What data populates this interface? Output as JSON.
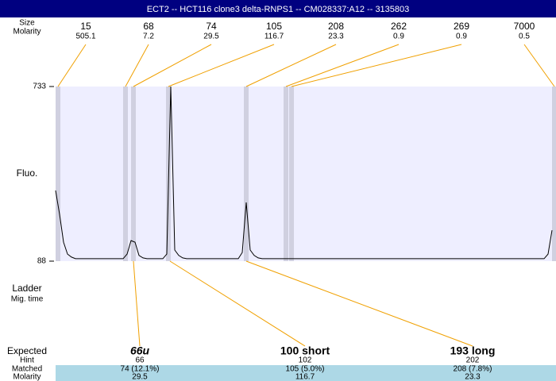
{
  "header": {
    "title": "ECT2 -- HCT116 clone3 delta-RNPS1 -- CM028337:A12 -- 3135803"
  },
  "peaks": {
    "size_label": "Size",
    "molarity_label": "Molarity",
    "sizes": [
      15,
      68,
      74,
      105,
      208,
      262,
      269,
      7000
    ],
    "molarities": [
      505.1,
      7.2,
      29.5,
      116.7,
      23.3,
      0.9,
      0.9,
      0.5
    ]
  },
  "chart_data": {
    "type": "line",
    "y_label": "Fluo.",
    "ylim": [
      88,
      733
    ],
    "yticks": [
      88,
      733
    ],
    "categories": [
      null,
      null,
      null,
      null,
      null,
      null,
      null,
      null,
      null,
      null,
      null,
      null,
      null,
      null,
      null,
      null,
      null,
      null,
      null,
      null,
      null,
      null,
      null,
      null,
      null,
      null,
      null,
      null,
      null,
      null,
      null,
      null,
      null,
      null,
      null,
      null,
      null,
      null,
      null,
      null,
      null,
      null,
      null,
      null,
      null,
      null,
      null,
      null,
      null,
      null,
      null,
      null,
      null,
      null,
      null,
      null,
      null,
      null,
      null,
      null,
      null,
      null,
      null,
      null,
      null,
      null,
      null,
      null,
      null,
      null,
      null,
      null,
      null,
      null,
      null,
      null,
      null,
      null,
      null,
      null,
      null,
      null,
      null,
      null,
      null,
      null,
      null,
      null,
      null,
      null,
      null,
      null,
      null,
      null,
      null,
      null,
      null,
      null,
      null,
      null,
      null,
      null,
      null,
      null,
      null,
      null,
      null,
      null,
      null,
      null,
      null,
      null,
      null,
      null,
      null,
      null,
      null,
      null,
      null,
      null,
      null,
      null,
      null,
      null,
      null,
      null
    ],
    "series": [
      {
        "color": "#000000",
        "values": [
          349,
          261,
          158,
          114,
          103,
          97,
          97,
          97,
          97,
          97,
          97,
          97,
          97,
          97,
          97,
          97,
          97,
          97,
          114,
          164,
          158,
          109,
          100,
          97,
          97,
          97,
          97,
          97,
          114,
          733,
          129,
          109,
          100,
          97,
          97,
          97,
          97,
          97,
          97,
          97,
          97,
          97,
          97,
          97,
          97,
          97,
          97,
          120,
          305,
          129,
          109,
          100,
          97,
          97,
          97,
          97,
          97,
          97,
          97,
          97,
          97,
          97,
          97,
          97,
          97,
          97,
          97,
          97,
          97,
          97,
          97,
          97,
          97,
          97,
          97,
          97,
          97,
          97,
          97,
          97,
          97,
          97,
          97,
          97,
          97,
          97,
          97,
          97,
          97,
          97,
          97,
          97,
          97,
          97,
          97,
          97,
          97,
          97,
          97,
          97,
          97,
          97,
          97,
          97,
          97,
          97,
          97,
          97,
          97,
          97,
          97,
          97,
          97,
          97,
          97,
          97,
          97,
          97,
          97,
          97,
          97,
          97,
          97,
          97,
          114,
          202
        ]
      }
    ]
  },
  "ladder": {
    "label": "Ladder",
    "sublabel": "Mig. time"
  },
  "expected": {
    "row_labels": [
      "Expected",
      "Hint",
      "Matched",
      "Molarity"
    ],
    "columns": [
      {
        "name": "66u",
        "hint": 66,
        "matched": "74 (12.1%)",
        "molarity": 29.5
      },
      {
        "name": "100 short",
        "hint": 102,
        "matched": "105 (5.0%)",
        "molarity": 116.7
      },
      {
        "name": "193 long",
        "hint": 202,
        "matched": "208 (7.8%)",
        "molarity": 23.3
      }
    ]
  }
}
